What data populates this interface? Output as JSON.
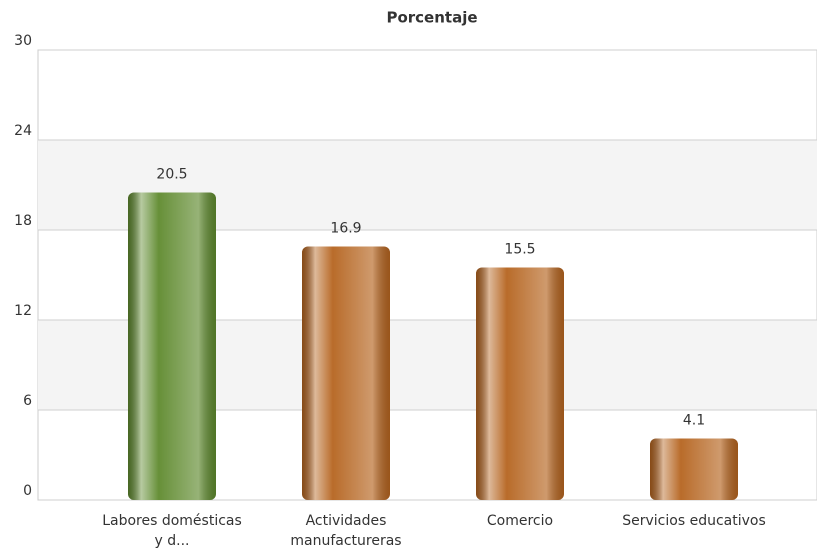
{
  "chart_data": {
    "type": "bar",
    "title": "Porcentaje",
    "categories": [
      "Labores domésticas y d...",
      "Actividades manufactureras",
      "Comercio",
      "Servicios educativos"
    ],
    "values": [
      20.5,
      16.9,
      15.5,
      4.1
    ],
    "colors": [
      "#5f8a2e",
      "#b5641f",
      "#b5641f",
      "#b5641f"
    ],
    "ylim": [
      0,
      30
    ],
    "yticks": [
      0,
      6,
      12,
      18,
      24,
      30
    ],
    "grid": true
  }
}
